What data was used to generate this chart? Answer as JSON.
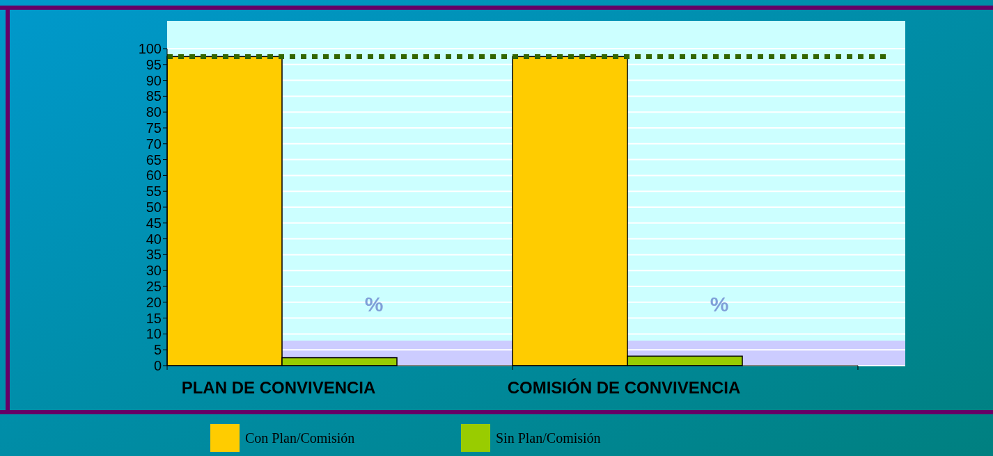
{
  "chart_data": {
    "type": "bar",
    "categories": [
      "PLAN DE CONVIVENCIA",
      "COMISIÓN DE CONVIVENCIA"
    ],
    "series": [
      {
        "name": "Con Plan/Comisión",
        "color": "#ffcc00",
        "values": [
          97.5,
          97.5
        ]
      },
      {
        "name": "Sin Plan/Comisión",
        "color": "#99cc00",
        "values": [
          2.5,
          3
        ]
      }
    ],
    "ylim": [
      0,
      100
    ],
    "yticks": [
      0,
      5,
      10,
      15,
      20,
      25,
      30,
      35,
      40,
      45,
      50,
      55,
      60,
      65,
      70,
      75,
      80,
      85,
      90,
      95,
      100
    ],
    "grid": "y",
    "legend": "bottom",
    "ref_lines": [
      {
        "axis": "y",
        "value": 97.5,
        "color": "#336600",
        "line_style": "dotted"
      }
    ],
    "annotations": [
      "%",
      "%"
    ]
  }
}
